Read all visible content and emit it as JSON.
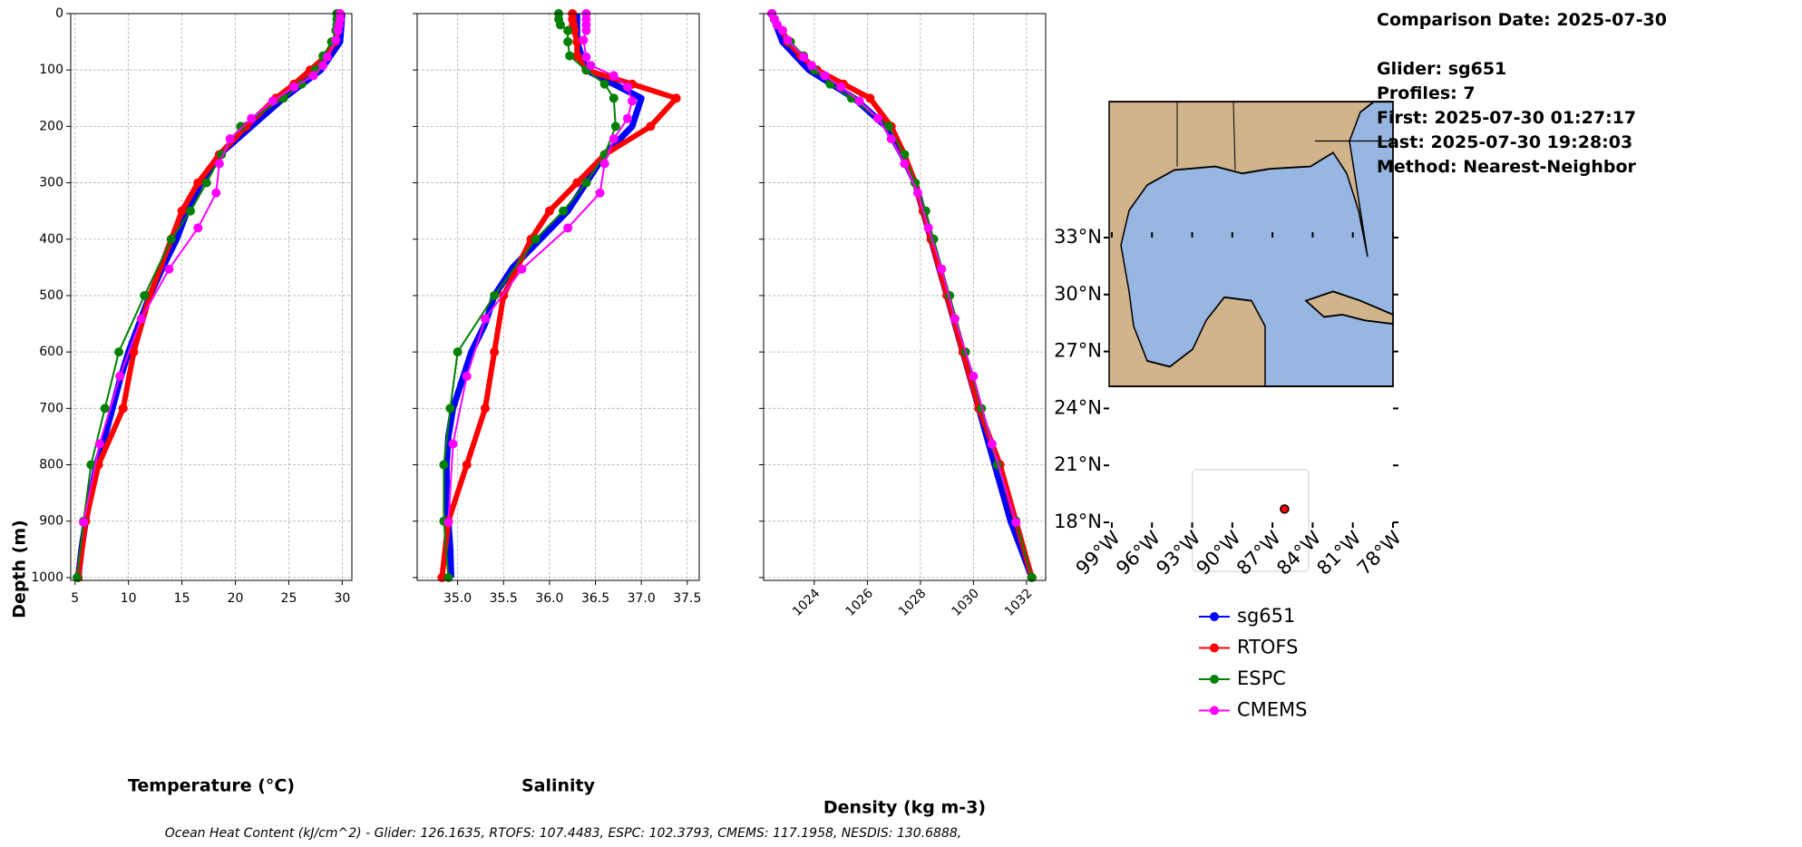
{
  "chart_data": [
    {
      "type": "line",
      "xlabel": "Temperature (°C)",
      "ylabel": "Depth (m)",
      "xlim": [
        4.6,
        30.9
      ],
      "xticks": [
        5,
        10,
        15,
        20,
        25,
        30
      ],
      "ylim": [
        1005,
        0
      ],
      "yticks": [
        0,
        100,
        200,
        300,
        400,
        500,
        600,
        700,
        800,
        900,
        1000
      ],
      "grid": true,
      "series": [
        {
          "name": "sg651",
          "color": "#0000ff",
          "depth": [
            0,
            50,
            100,
            150,
            200,
            250,
            300,
            350,
            400,
            450,
            500,
            550,
            600,
            650,
            700,
            750,
            800,
            850,
            900,
            950,
            1000
          ],
          "values": [
            30,
            29.8,
            28,
            24.5,
            21.5,
            18.5,
            16.8,
            15.5,
            14.5,
            13.2,
            12,
            11,
            10,
            9.2,
            8.5,
            7.8,
            7,
            6.5,
            6,
            5.6,
            5.3
          ]
        },
        {
          "name": "RTOFS",
          "color": "#ff0000",
          "depth": [
            0,
            10,
            20,
            30,
            50,
            75,
            100,
            125,
            150,
            200,
            250,
            300,
            350,
            400,
            500,
            600,
            700,
            800,
            900,
            1000
          ],
          "values": [
            29.8,
            29.8,
            29.7,
            29.6,
            29.3,
            28.5,
            27,
            25.5,
            23.8,
            21,
            18.5,
            16.5,
            15,
            14,
            12,
            10.5,
            9.5,
            7.2,
            6,
            5.3
          ]
        },
        {
          "name": "ESPC",
          "color": "#008000",
          "depth": [
            0,
            10,
            20,
            30,
            50,
            75,
            100,
            125,
            150,
            200,
            250,
            300,
            350,
            400,
            500,
            600,
            700,
            800,
            900,
            1000
          ],
          "values": [
            29.5,
            29.5,
            29.5,
            29.4,
            29,
            28.2,
            27.5,
            26.2,
            24.5,
            20.5,
            18.7,
            17.3,
            15.8,
            14,
            11.5,
            9.1,
            7.8,
            6.5,
            5.8,
            5.2
          ]
        },
        {
          "name": "CMEMS",
          "color": "#ff00ff",
          "depth": [
            0,
            10,
            20,
            30,
            47,
            77,
            92,
            110,
            130,
            155,
            186,
            222,
            266,
            318,
            380,
            453,
            541,
            643,
            763,
            902
          ],
          "values": [
            29.8,
            29.8,
            29.7,
            29.6,
            29.4,
            28.6,
            28.2,
            27.3,
            25.5,
            23.5,
            21.5,
            19.5,
            18.5,
            18.2,
            16.5,
            13.8,
            11.2,
            9.2,
            7.3,
            5.8
          ]
        }
      ]
    },
    {
      "type": "line",
      "xlabel": "Salinity",
      "xlim": [
        34.56,
        37.63
      ],
      "xticks": [
        {
          "value": 35,
          "label": "35.0"
        },
        35.5,
        {
          "value": 36,
          "label": "36.0"
        },
        36.5,
        {
          "value": 37,
          "label": "37.0"
        },
        37.5
      ],
      "ylim": [
        1005,
        0
      ],
      "yticks": [
        0,
        100,
        200,
        300,
        400,
        500,
        600,
        700,
        800,
        900,
        1000
      ],
      "grid": true,
      "series": [
        {
          "name": "sg651",
          "color": "#0000ff",
          "depth": [
            0,
            50,
            100,
            150,
            200,
            250,
            300,
            350,
            400,
            450,
            500,
            550,
            600,
            650,
            700,
            750,
            800,
            850,
            900,
            950,
            1000
          ],
          "values": [
            36.3,
            36.3,
            36.4,
            37.0,
            36.9,
            36.6,
            36.4,
            36.2,
            35.9,
            35.6,
            35.4,
            35.3,
            35.15,
            35.05,
            34.95,
            34.9,
            34.88,
            34.88,
            34.9,
            34.92,
            34.93
          ]
        },
        {
          "name": "RTOFS",
          "color": "#ff0000",
          "depth": [
            0,
            10,
            20,
            30,
            50,
            75,
            100,
            125,
            150,
            200,
            250,
            300,
            350,
            400,
            500,
            600,
            700,
            800,
            900,
            1000
          ],
          "values": [
            36.25,
            36.25,
            36.26,
            36.27,
            36.3,
            36.3,
            36.4,
            36.9,
            37.38,
            37.1,
            36.6,
            36.3,
            36.0,
            35.8,
            35.5,
            35.4,
            35.3,
            35.1,
            34.9,
            34.83
          ]
        },
        {
          "name": "ESPC",
          "color": "#008000",
          "depth": [
            0,
            10,
            20,
            30,
            50,
            75,
            100,
            125,
            150,
            200,
            250,
            300,
            350,
            400,
            500,
            600,
            700,
            800,
            900,
            1000
          ],
          "values": [
            36.1,
            36.1,
            36.12,
            36.2,
            36.2,
            36.22,
            36.4,
            36.6,
            36.7,
            36.72,
            36.6,
            36.4,
            36.15,
            35.85,
            35.4,
            35.0,
            34.92,
            34.85,
            34.85,
            34.9
          ]
        },
        {
          "name": "CMEMS",
          "color": "#ff00ff",
          "depth": [
            0,
            10,
            20,
            30,
            47,
            77,
            92,
            110,
            130,
            155,
            186,
            222,
            266,
            318,
            380,
            453,
            541,
            643,
            763,
            902
          ],
          "values": [
            36.4,
            36.4,
            36.4,
            36.4,
            36.37,
            36.4,
            36.45,
            36.7,
            36.85,
            36.9,
            36.85,
            36.7,
            36.6,
            36.55,
            36.2,
            35.7,
            35.3,
            35.1,
            34.95,
            34.9
          ]
        }
      ]
    },
    {
      "type": "line",
      "xlabel": "Density (kg m-3)",
      "xlim": [
        1022.09,
        1032.72
      ],
      "xticks": [
        1024,
        1026,
        1028,
        1030,
        1032
      ],
      "ylim": [
        1005,
        0
      ],
      "yticks": [
        0,
        100,
        200,
        300,
        400,
        500,
        600,
        700,
        800,
        900,
        1000
      ],
      "grid": true,
      "series": [
        {
          "name": "sg651",
          "color": "#0000ff",
          "depth": [
            0,
            50,
            100,
            150,
            200,
            250,
            300,
            350,
            400,
            450,
            500,
            550,
            600,
            650,
            700,
            750,
            800,
            850,
            900,
            950,
            1000
          ],
          "values": [
            1022.4,
            1022.8,
            1023.8,
            1025.5,
            1026.7,
            1027.3,
            1027.8,
            1028.1,
            1028.4,
            1028.7,
            1029.0,
            1029.3,
            1029.6,
            1029.9,
            1030.2,
            1030.5,
            1030.8,
            1031.1,
            1031.4,
            1031.8,
            1032.2
          ]
        },
        {
          "name": "RTOFS",
          "color": "#ff0000",
          "depth": [
            0,
            10,
            20,
            30,
            50,
            75,
            100,
            125,
            150,
            200,
            250,
            300,
            350,
            400,
            500,
            600,
            700,
            800,
            900,
            1000
          ],
          "values": [
            1022.4,
            1022.5,
            1022.6,
            1022.8,
            1023.0,
            1023.5,
            1024.1,
            1025.1,
            1026.1,
            1026.9,
            1027.4,
            1027.8,
            1028.1,
            1028.4,
            1029.0,
            1029.6,
            1030.2,
            1031.0,
            1031.6,
            1032.2
          ]
        },
        {
          "name": "ESPC",
          "color": "#008000",
          "depth": [
            0,
            10,
            20,
            30,
            50,
            75,
            100,
            125,
            150,
            200,
            250,
            300,
            350,
            400,
            500,
            600,
            700,
            800,
            900,
            1000
          ],
          "values": [
            1022.4,
            1022.5,
            1022.6,
            1022.8,
            1023.1,
            1023.6,
            1024.0,
            1024.6,
            1025.4,
            1026.8,
            1027.4,
            1027.8,
            1028.2,
            1028.5,
            1029.1,
            1029.7,
            1030.3,
            1030.9,
            1031.6,
            1032.2
          ]
        },
        {
          "name": "CMEMS",
          "color": "#ff00ff",
          "depth": [
            0,
            10,
            20,
            30,
            47,
            77,
            92,
            110,
            130,
            155,
            186,
            222,
            266,
            318,
            380,
            453,
            541,
            643,
            763,
            902
          ],
          "values": [
            1022.4,
            1022.5,
            1022.6,
            1022.8,
            1023.0,
            1023.6,
            1023.9,
            1024.4,
            1025.0,
            1025.7,
            1026.4,
            1026.9,
            1027.4,
            1027.9,
            1028.3,
            1028.8,
            1029.3,
            1030.0,
            1030.7,
            1031.6
          ]
        }
      ]
    }
  ],
  "info": [
    "Comparison Date: 2025-07-30",
    "Glider: sg651",
    "Profiles: 7",
    "First: 2025-07-30 01:27:17",
    "Last: 2025-07-30 19:28:03",
    "Method: Nearest-Neighbor"
  ],
  "map": {
    "lat_ticks": [
      {
        "value": 33,
        "label": "33°N"
      },
      {
        "value": 30,
        "label": "30°N"
      },
      {
        "value": 27,
        "label": "27°N"
      },
      {
        "value": 24,
        "label": "24°N"
      },
      {
        "value": 21,
        "label": "21°N"
      },
      {
        "value": 18,
        "label": "18°N"
      }
    ],
    "lon_ticks": [
      {
        "value": -99,
        "label": "99°W"
      },
      {
        "value": -96,
        "label": "96°W"
      },
      {
        "value": -93,
        "label": "93°W"
      },
      {
        "value": -90,
        "label": "90°W"
      },
      {
        "value": -87,
        "label": "87°W"
      },
      {
        "value": -84,
        "label": "84°W"
      },
      {
        "value": -81,
        "label": "81°W"
      },
      {
        "value": -78,
        "label": "78°W"
      }
    ],
    "lonlim": [
      -99.2,
      -78
    ],
    "latlim": [
      18,
      33
    ],
    "glider_position": {
      "lon": -86.1,
      "lat": 18.7
    }
  },
  "footer": "Ocean Heat Content (kJ/cm^2) - Glider: 126.1635,  RTOFS: 107.4483,  ESPC: 102.3793,  CMEMS: 117.1958,  NESDIS: 130.6888,"
}
